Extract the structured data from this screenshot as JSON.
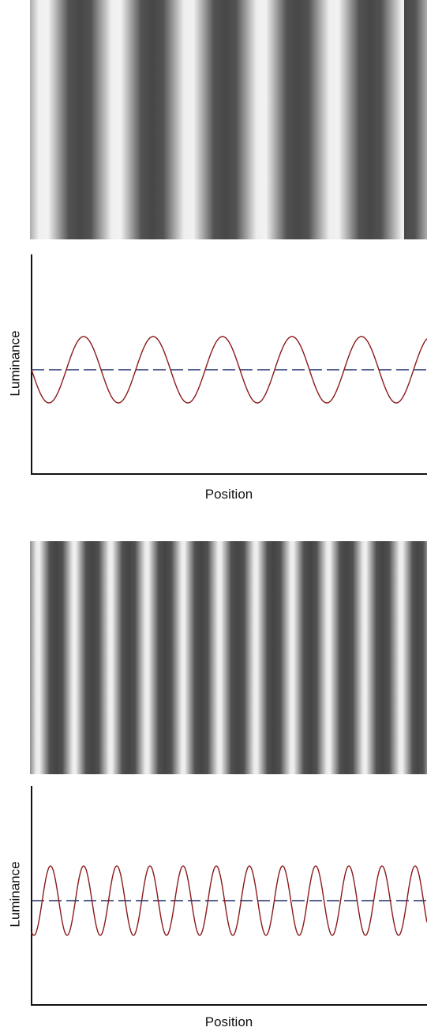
{
  "panels": [
    {
      "y_label": "Luminance",
      "x_label": "Position"
    },
    {
      "y_label": "Luminance",
      "x_label": "Position"
    }
  ]
}
